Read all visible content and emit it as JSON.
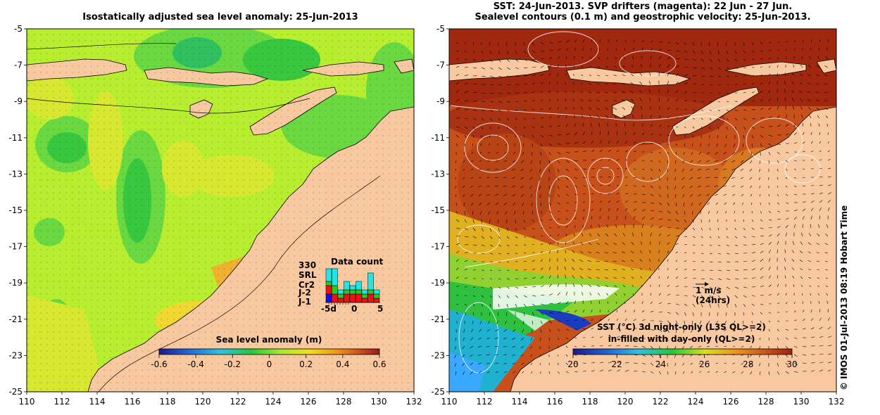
{
  "left_panel": {
    "title": "Isostatically adjusted sea level anomaly: 25-Jun-2013",
    "colorbar": {
      "label": "Sea level anomaly (m)",
      "ticks": [
        "-0.6",
        "-0.4",
        "-0.2",
        "0",
        "0.2",
        "0.4",
        "0.6"
      ],
      "min": -0.6,
      "max": 0.6
    },
    "data_count": {
      "title": "Data count",
      "total": "330",
      "missions": [
        {
          "name": "SRL",
          "color": "#22e5e5"
        },
        {
          "name": "Cr2",
          "color": "#22cc22"
        },
        {
          "name": "J-2",
          "color": "#ee1111"
        },
        {
          "name": "J-1",
          "color": "#1111ee"
        }
      ],
      "xticks": [
        "-5d",
        "0",
        "5"
      ],
      "bars": [
        {
          "day": -5,
          "J1": 2,
          "J2": 2,
          "Cr2": 1,
          "SRL": 3
        },
        {
          "day": -4,
          "J1": 0,
          "J2": 2,
          "Cr2": 2,
          "SRL": 4
        },
        {
          "day": -3,
          "J1": 0,
          "J2": 1,
          "Cr2": 1,
          "SRL": 1
        },
        {
          "day": -2,
          "J1": 0,
          "J2": 2,
          "Cr2": 1,
          "SRL": 2
        },
        {
          "day": -1,
          "J1": 0,
          "J2": 2,
          "Cr2": 1,
          "SRL": 1
        },
        {
          "day": 0,
          "J1": 0,
          "J2": 2,
          "Cr2": 1,
          "SRL": 2
        },
        {
          "day": 1,
          "J1": 0,
          "J2": 1,
          "Cr2": 1,
          "SRL": 1
        },
        {
          "day": 2,
          "J1": 0,
          "J2": 2,
          "Cr2": 1,
          "SRL": 4
        },
        {
          "day": 3,
          "J1": 0,
          "J2": 1,
          "Cr2": 1,
          "SRL": 1
        }
      ]
    }
  },
  "right_panel": {
    "title_line1": "SST: 24-Jun-2013. SVP drifters (magenta): 22 Jun - 27 Jun.",
    "title_line2": "Sealevel contours (0.1 m) and geostrophic velocity: 25-Jun-2013.",
    "colorbar": {
      "label_line1": "SST (°C)  3d night-only (L3S QL>=2)",
      "label_line2": "in-filled with day-only (QL>=2)",
      "ticks": [
        "20",
        "22",
        "24",
        "26",
        "28",
        "30"
      ],
      "min": 20,
      "max": 30
    },
    "velocity_scale": {
      "value": "1 m/s",
      "note": "(24hrs)"
    }
  },
  "axes": {
    "lat_ticks": [
      "-5",
      "-7",
      "-9",
      "-11",
      "-13",
      "-15",
      "-17",
      "-19",
      "-21",
      "-23",
      "-25"
    ],
    "lon_ticks": [
      "110",
      "112",
      "114",
      "116",
      "118",
      "120",
      "122",
      "124",
      "126",
      "128",
      "130",
      "132"
    ],
    "lat_range": [
      -25,
      -5
    ],
    "lon_range": [
      110,
      132
    ]
  },
  "credit": "© IMOS 01-Jul-2013 08:19 Hobart Time",
  "colors": {
    "land": "#f8c9a0",
    "sla_base": "#b8ee30",
    "sst_base": "#c8501a",
    "sst_warm": "#a0280e"
  }
}
